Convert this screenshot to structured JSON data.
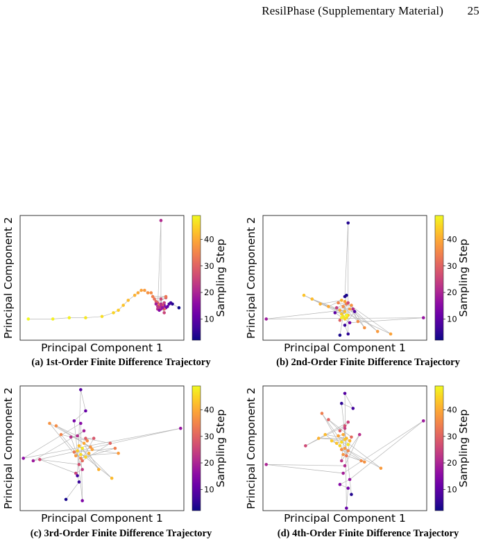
{
  "header": {
    "title": "ResilPhase (Supplementary Material)",
    "page_number": "25"
  },
  "colorbar_ticks": [
    "10",
    "20",
    "30",
    "40"
  ],
  "chart_data": [
    {
      "type": "scatter",
      "panel_label": "(a) 1st-Order Finite Difference Trajectory",
      "xlabel": "Principal Component 1",
      "ylabel": "Principal Component 2",
      "colorbar_label": "Sampling Step",
      "colormap": "plasma",
      "color_range": [
        2,
        49
      ],
      "colorbar_ticks": [
        10,
        20,
        30,
        40
      ],
      "xlim": [
        0,
        100
      ],
      "ylim": [
        0,
        100
      ],
      "grid": false,
      "points": [
        [
          97,
          26,
          2
        ],
        [
          93,
          29,
          4
        ],
        [
          92,
          30,
          6
        ],
        [
          91,
          29,
          8
        ],
        [
          90,
          27,
          10
        ],
        [
          89,
          26,
          12
        ],
        [
          88,
          28,
          14
        ],
        [
          87,
          27,
          16
        ],
        [
          86,
          25,
          18
        ],
        [
          85,
          26,
          20
        ],
        [
          84,
          25,
          22
        ],
        [
          85,
          25,
          24
        ],
        [
          86,
          28,
          26
        ],
        [
          84,
          30,
          28
        ],
        [
          83,
          31,
          30
        ],
        [
          82,
          33,
          32
        ],
        [
          81,
          35,
          34
        ],
        [
          80,
          38,
          36
        ],
        [
          78,
          38,
          37
        ],
        [
          76,
          40,
          38
        ],
        [
          74,
          40,
          39
        ],
        [
          72,
          38,
          40
        ],
        [
          70,
          36,
          41
        ],
        [
          66,
          32,
          42
        ],
        [
          63,
          28,
          43
        ],
        [
          60,
          24,
          44
        ],
        [
          57,
          22,
          45
        ],
        [
          50,
          19,
          46
        ],
        [
          40,
          18,
          47
        ],
        [
          30,
          18,
          48
        ],
        [
          20,
          17,
          48
        ],
        [
          5,
          17,
          49
        ],
        [
          88,
          22,
          25
        ],
        [
          87,
          28,
          27
        ],
        [
          89,
          34,
          29
        ],
        [
          88,
          25,
          31
        ],
        [
          89,
          35,
          33
        ],
        [
          85,
          28,
          35
        ],
        [
          84,
          27,
          23
        ],
        [
          86,
          27,
          21
        ],
        [
          83,
          29,
          19
        ],
        [
          87,
          26,
          17
        ],
        [
          85,
          24,
          15
        ],
        [
          86,
          33,
          26
        ],
        [
          88,
          30,
          24
        ],
        [
          86,
          29,
          22
        ],
        [
          86,
          96,
          21
        ]
      ]
    },
    {
      "type": "scatter",
      "panel_label": "(b) 2nd-Order Finite Difference Trajectory",
      "xlabel": "Principal Component 1",
      "ylabel": "Principal Component 2",
      "colorbar_label": "Sampling Step",
      "colormap": "plasma",
      "color_range": [
        2,
        49
      ],
      "colorbar_ticks": [
        10,
        20,
        30,
        40
      ],
      "xlim": [
        0,
        100
      ],
      "ylim": [
        0,
        100
      ],
      "grid": false,
      "points": [
        [
          50,
          17,
          45
        ],
        [
          49,
          19,
          47
        ],
        [
          51,
          18,
          46
        ],
        [
          48,
          21,
          44
        ],
        [
          52,
          20,
          43
        ],
        [
          50,
          23,
          42
        ],
        [
          47,
          24,
          40
        ],
        [
          53,
          25,
          38
        ],
        [
          49,
          27,
          36
        ],
        [
          51,
          29,
          34
        ],
        [
          46,
          30,
          35
        ],
        [
          54,
          28,
          37
        ],
        [
          50,
          31,
          39
        ],
        [
          48,
          32,
          41
        ],
        [
          52,
          30,
          26
        ],
        [
          45,
          26,
          24
        ],
        [
          55,
          25,
          22
        ],
        [
          50,
          35,
          4
        ],
        [
          47,
          4,
          3
        ],
        [
          52,
          5,
          5
        ],
        [
          50,
          12,
          6
        ],
        [
          56,
          23,
          8
        ],
        [
          44,
          22,
          10
        ],
        [
          53,
          14,
          12
        ],
        [
          58,
          15,
          36
        ],
        [
          62,
          10,
          37
        ],
        [
          70,
          7,
          38
        ],
        [
          78,
          5,
          39
        ],
        [
          40,
          27,
          40
        ],
        [
          35,
          29,
          41
        ],
        [
          30,
          33,
          42
        ],
        [
          25,
          36,
          43
        ],
        [
          2,
          17,
          18
        ],
        [
          98,
          18,
          17
        ],
        [
          51,
          36,
          3
        ],
        [
          52,
          94,
          4
        ],
        [
          48,
          18,
          48
        ],
        [
          51,
          20,
          49
        ],
        [
          47,
          16,
          30
        ]
      ]
    },
    {
      "type": "scatter",
      "panel_label": "(c) 3rd-Order Finite Difference Trajectory",
      "xlabel": "Principal Component 1",
      "ylabel": "Principal Component 2",
      "colorbar_label": "Sampling Step",
      "colormap": "plasma",
      "color_range": [
        2,
        49
      ],
      "colorbar_ticks": [
        10,
        20,
        30,
        40
      ],
      "xlim": [
        0,
        100
      ],
      "ylim": [
        0,
        100
      ],
      "grid": false,
      "points": [
        [
          35,
          48,
          44
        ],
        [
          37,
          45,
          46
        ],
        [
          38,
          50,
          47
        ],
        [
          40,
          43,
          45
        ],
        [
          36,
          52,
          42
        ],
        [
          39,
          54,
          40
        ],
        [
          42,
          46,
          41
        ],
        [
          44,
          49,
          39
        ],
        [
          34,
          44,
          38
        ],
        [
          41,
          56,
          36
        ],
        [
          37,
          42,
          35
        ],
        [
          43,
          51,
          37
        ],
        [
          33,
          47,
          33
        ],
        [
          38,
          40,
          31
        ],
        [
          40,
          58,
          29
        ],
        [
          36,
          37,
          27
        ],
        [
          34,
          30,
          25
        ],
        [
          38,
          33,
          23
        ],
        [
          35,
          60,
          21
        ],
        [
          39,
          64,
          19
        ],
        [
          37,
          70,
          15
        ],
        [
          33,
          72,
          13
        ],
        [
          40,
          80,
          11
        ],
        [
          37,
          97,
          9
        ],
        [
          35,
          28,
          7
        ],
        [
          36,
          23,
          6
        ],
        [
          38,
          8,
          14
        ],
        [
          28,
          9,
          3
        ],
        [
          12,
          41,
          26
        ],
        [
          8,
          40,
          18
        ],
        [
          48,
          33,
          41
        ],
        [
          56,
          26,
          42
        ],
        [
          25,
          61,
          35
        ],
        [
          22,
          68,
          36
        ],
        [
          18,
          70,
          37
        ],
        [
          60,
          46,
          38
        ],
        [
          58,
          50,
          34
        ],
        [
          55,
          54,
          30
        ],
        [
          98,
          66,
          17
        ],
        [
          2,
          42,
          16
        ],
        [
          31,
          59,
          22
        ],
        [
          45,
          58,
          28
        ]
      ]
    },
    {
      "type": "scatter",
      "panel_label": "(d) 4th-Order Finite Difference Trajectory",
      "xlabel": "Principal Component 1",
      "ylabel": "Principal Component 2",
      "colorbar_label": "Sampling Step",
      "colormap": "plasma",
      "color_range": [
        2,
        49
      ],
      "colorbar_ticks": [
        10,
        20,
        30,
        40
      ],
      "xlim": [
        0,
        100
      ],
      "ylim": [
        0,
        100
      ],
      "grid": false,
      "points": [
        [
          50,
          57,
          44
        ],
        [
          48,
          55,
          46
        ],
        [
          52,
          53,
          47
        ],
        [
          47,
          52,
          45
        ],
        [
          51,
          58,
          42
        ],
        [
          49,
          61,
          40
        ],
        [
          53,
          56,
          41
        ],
        [
          46,
          60,
          39
        ],
        [
          50,
          50,
          38
        ],
        [
          48,
          49,
          36
        ],
        [
          52,
          48,
          35
        ],
        [
          49,
          45,
          37
        ],
        [
          51,
          44,
          33
        ],
        [
          54,
          59,
          31
        ],
        [
          47,
          64,
          29
        ],
        [
          50,
          68,
          27
        ],
        [
          52,
          71,
          25
        ],
        [
          48,
          40,
          23
        ],
        [
          50,
          36,
          21
        ],
        [
          49,
          30,
          19
        ],
        [
          53,
          25,
          17
        ],
        [
          47,
          21,
          15
        ],
        [
          52,
          18,
          13
        ],
        [
          51,
          2,
          11
        ],
        [
          50,
          94,
          9
        ],
        [
          55,
          82,
          7
        ],
        [
          48,
          86,
          5
        ],
        [
          54,
          13,
          4
        ],
        [
          45,
          54,
          43
        ],
        [
          42,
          56,
          44
        ],
        [
          38,
          61,
          42
        ],
        [
          34,
          58,
          41
        ],
        [
          60,
          40,
          36
        ],
        [
          62,
          39,
          37
        ],
        [
          72,
          34,
          38
        ],
        [
          40,
          73,
          30
        ],
        [
          36,
          78,
          34
        ],
        [
          59,
          61,
          22
        ],
        [
          98,
          72,
          18
        ],
        [
          2,
          37,
          20
        ],
        [
          26,
          52,
          26
        ],
        [
          50,
          66,
          24
        ]
      ]
    }
  ]
}
